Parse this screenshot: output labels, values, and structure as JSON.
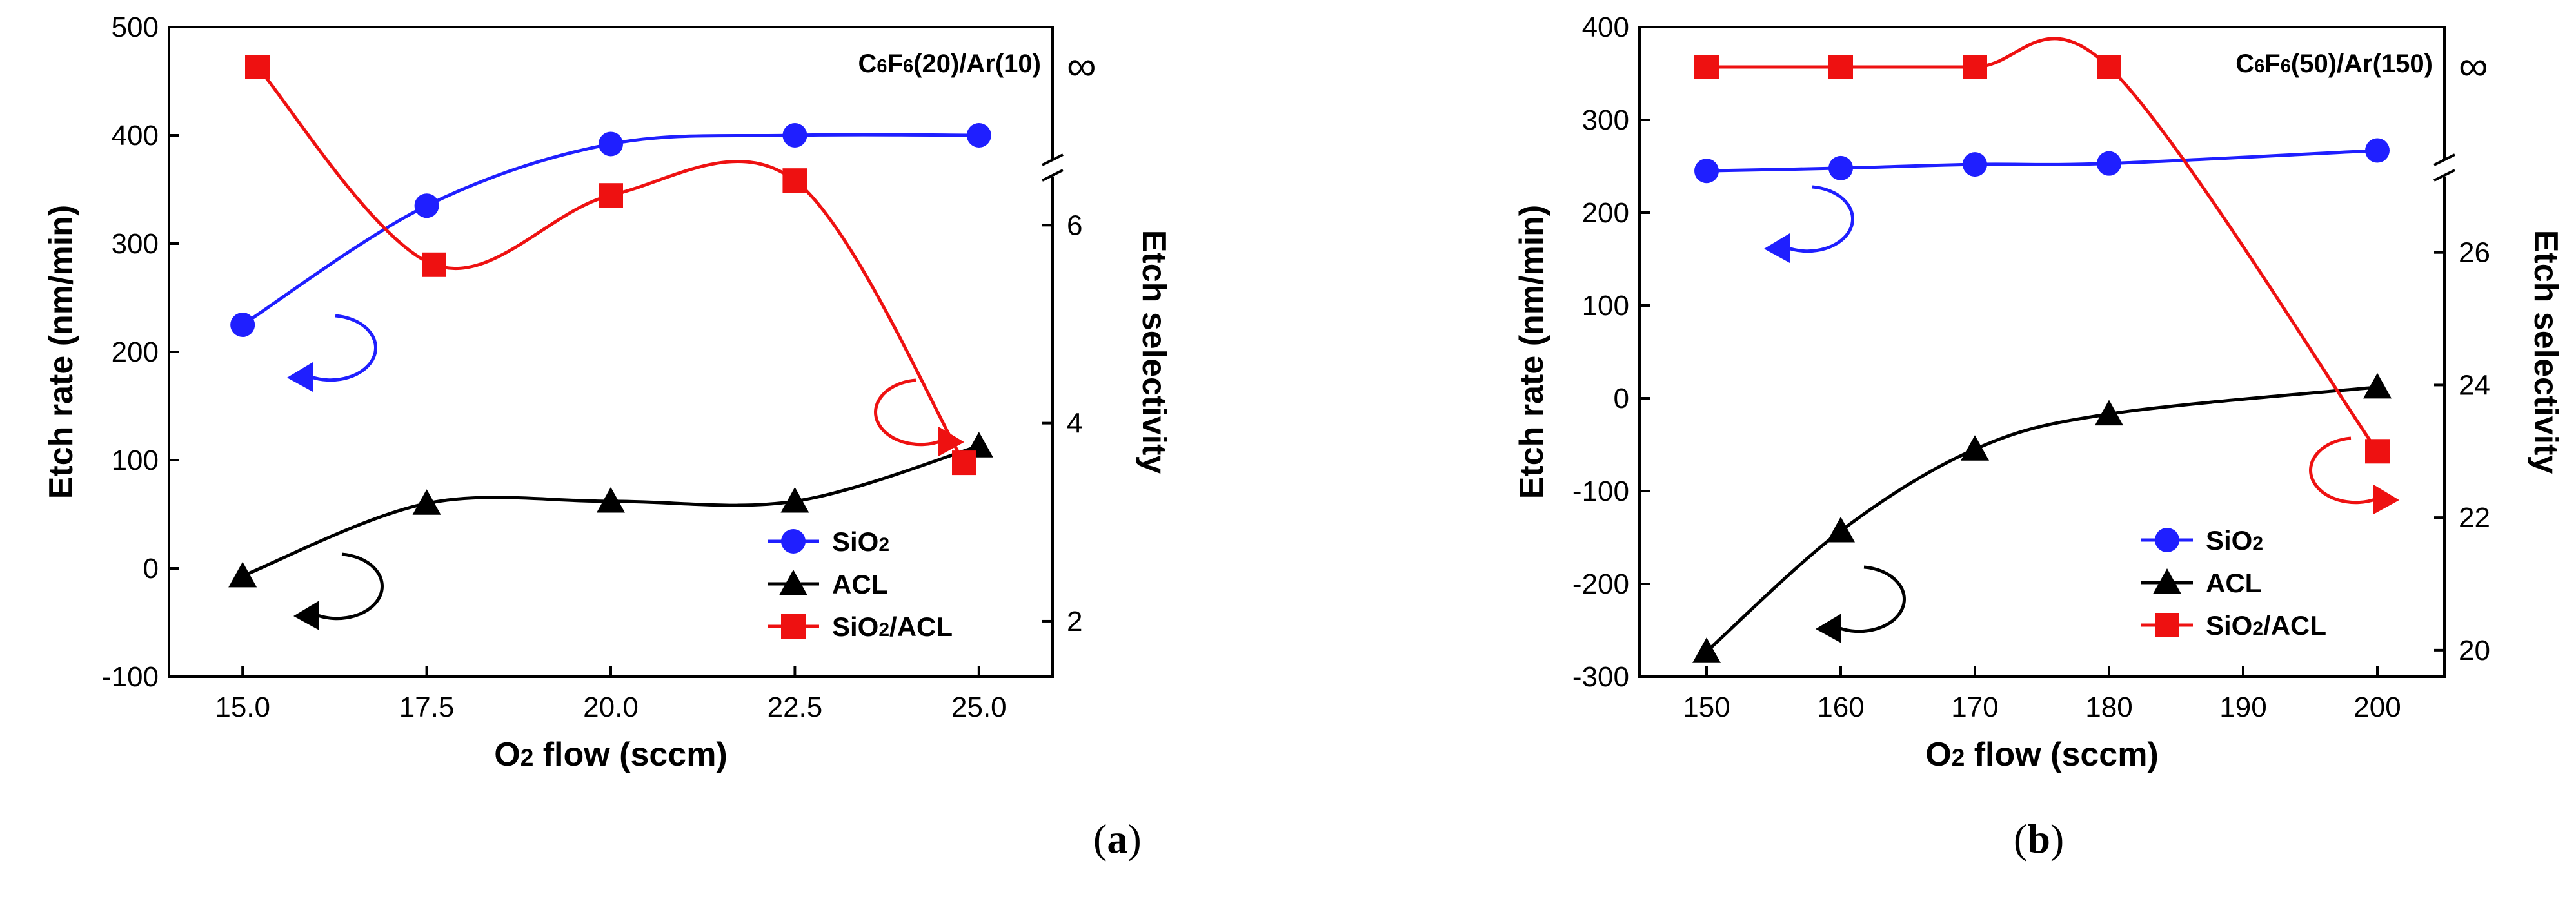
{
  "chart_data": [
    {
      "type": "line",
      "panel_label": "a",
      "annotation": "C6F6(20)/Ar(10)",
      "infinity_label": "∞",
      "xlabel": "O2 flow (sccm)",
      "ylabel": "Etch rate (nm/min)",
      "y2label": "Etch selectivity",
      "xlim": [
        14,
        26
      ],
      "ylim": [
        -100,
        500
      ],
      "y2lim": [
        1.44,
        8.0
      ],
      "xticks": [
        15.0,
        17.5,
        20.0,
        22.5,
        25.0
      ],
      "xtick_labels": [
        "15.0",
        "17.5",
        "20.0",
        "22.5",
        "25.0"
      ],
      "yticks": [
        -100,
        0,
        100,
        200,
        300,
        400,
        500
      ],
      "y2ticks": [
        2,
        4,
        6
      ],
      "legend_position": "bottom-right",
      "series": [
        {
          "name": "SiO2",
          "legend_label": "SiO₂",
          "axis": "left",
          "color": "#1f1fff",
          "marker": "circle",
          "x": [
            15.0,
            17.5,
            20.0,
            22.5,
            25.0
          ],
          "values": [
            225,
            335,
            392,
            400,
            400
          ]
        },
        {
          "name": "ACL",
          "legend_label": "ACL",
          "axis": "left",
          "color": "#000000",
          "marker": "triangle",
          "x": [
            15.0,
            17.5,
            20.0,
            22.5,
            25.0
          ],
          "values": [
            -7,
            60,
            62,
            62,
            113
          ]
        },
        {
          "name": "SiO2/ACL",
          "legend_label": "SiO₂/ACL",
          "axis": "right",
          "color": "#ee1111",
          "marker": "square",
          "x": [
            15.2,
            17.6,
            20.0,
            22.5,
            24.8
          ],
          "values": [
            "∞",
            5.6,
            6.3,
            6.45,
            3.6
          ]
        }
      ]
    },
    {
      "type": "line",
      "panel_label": "b",
      "annotation": "C6F6(50)/Ar(150)",
      "infinity_label": "∞",
      "xlabel": "O2 flow (sccm)",
      "ylabel": "Etch rate (nm/min)",
      "y2label": "Etch selectivity",
      "xlim": [
        145,
        205
      ],
      "ylim": [
        -300,
        400
      ],
      "y2lim": [
        19.6,
        29.4
      ],
      "xticks": [
        150,
        160,
        170,
        180,
        190,
        200
      ],
      "xtick_labels": [
        "150",
        "160",
        "170",
        "180",
        "190",
        "200"
      ],
      "yticks": [
        -300,
        -200,
        -100,
        0,
        100,
        200,
        300,
        400
      ],
      "y2ticks": [
        20,
        22,
        24,
        26
      ],
      "legend_position": "bottom-right",
      "series": [
        {
          "name": "SiO2",
          "legend_label": "SiO₂",
          "axis": "left",
          "color": "#1f1fff",
          "marker": "circle",
          "x": [
            150,
            160,
            170,
            180,
            200
          ],
          "values": [
            245,
            248,
            252,
            253,
            267
          ]
        },
        {
          "name": "ACL",
          "legend_label": "ACL",
          "axis": "left",
          "color": "#000000",
          "marker": "triangle",
          "x": [
            150,
            160,
            170,
            180,
            200
          ],
          "values": [
            -273,
            -143,
            -55,
            -17,
            12
          ]
        },
        {
          "name": "SiO2/ACL",
          "legend_label": "SiO₂/ACL",
          "axis": "right",
          "color": "#ee1111",
          "marker": "square",
          "x": [
            150,
            160,
            170,
            180,
            200
          ],
          "values": [
            "∞",
            "∞",
            "∞",
            "∞",
            23.0
          ]
        }
      ]
    }
  ]
}
